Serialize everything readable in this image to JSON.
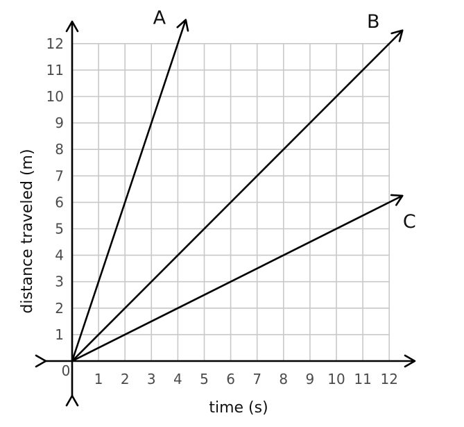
{
  "chart_data": {
    "type": "line",
    "xlabel": "time (s)",
    "ylabel": "distance traveled (m)",
    "xlim": [
      0,
      12
    ],
    "ylim": [
      0,
      12
    ],
    "x_ticks": [
      "1",
      "2",
      "3",
      "4",
      "5",
      "6",
      "7",
      "8",
      "9",
      "10",
      "11",
      "12"
    ],
    "y_ticks": [
      "1",
      "2",
      "3",
      "4",
      "5",
      "6",
      "7",
      "8",
      "9",
      "10",
      "11",
      "12"
    ],
    "origin_label": "0",
    "grid": true,
    "series": [
      {
        "name": "A",
        "x": [
          0,
          4.3
        ],
        "y": [
          0,
          12.9
        ]
      },
      {
        "name": "B",
        "x": [
          0,
          12.5
        ],
        "y": [
          0,
          12.5
        ]
      },
      {
        "name": "C",
        "x": [
          0,
          12.5
        ],
        "y": [
          0,
          6.25
        ]
      }
    ]
  }
}
